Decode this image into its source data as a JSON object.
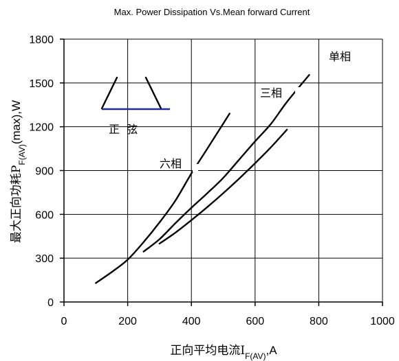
{
  "chart_data": {
    "type": "line",
    "title": "Max. Power Dissipation Vs.Mean forward Current",
    "ylabel": {
      "prefix": "最大正向功耗P",
      "sub": "F(AV)",
      "suffix": "(max),W"
    },
    "xlabel": {
      "prefix": "正向平均电流I",
      "sub": "F(AV)",
      "suffix": ",A"
    },
    "xlim": [
      0,
      1000
    ],
    "ylim": [
      0,
      1800
    ],
    "x_ticks": [
      "0",
      "200",
      "400",
      "600",
      "800",
      "1000"
    ],
    "y_ticks": [
      "0",
      "300",
      "600",
      "900",
      "1200",
      "1500",
      "1800"
    ],
    "grid": true,
    "series": [
      {
        "name": "六相",
        "points": [
          [
            100,
            130
          ],
          [
            150,
            205
          ],
          [
            200,
            290
          ],
          [
            250,
            410
          ],
          [
            300,
            545
          ],
          [
            350,
            695
          ],
          [
            400,
            880
          ],
          [
            450,
            1050
          ],
          [
            520,
            1290
          ]
        ]
      },
      {
        "name": "三相",
        "points": [
          [
            250,
            345
          ],
          [
            300,
            430
          ],
          [
            350,
            540
          ],
          [
            400,
            645
          ],
          [
            450,
            745
          ],
          [
            500,
            850
          ],
          [
            550,
            975
          ],
          [
            600,
            1100
          ],
          [
            650,
            1220
          ],
          [
            700,
            1370
          ],
          [
            770,
            1555
          ]
        ]
      },
      {
        "name": "单相",
        "points": [
          [
            300,
            400
          ],
          [
            350,
            475
          ],
          [
            400,
            560
          ],
          [
            450,
            650
          ],
          [
            500,
            745
          ],
          [
            550,
            845
          ],
          [
            600,
            950
          ],
          [
            650,
            1060
          ],
          [
            700,
            1180
          ]
        ]
      }
    ],
    "inset_label": "正  弦"
  }
}
